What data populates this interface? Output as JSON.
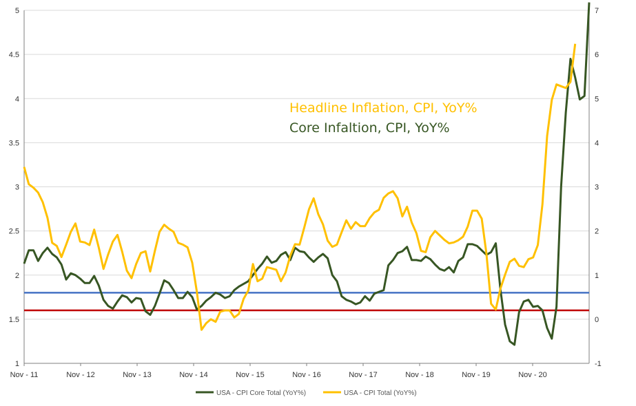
{
  "chart_data": {
    "type": "line",
    "title": "",
    "xlabel": "",
    "ylabel": "",
    "ylim": [
      1,
      5
    ],
    "y2lim": [
      -1,
      7
    ],
    "yticks": [
      "1",
      "1.5",
      "2",
      "2.5",
      "3",
      "3.5",
      "4",
      "4.5",
      "5"
    ],
    "y2ticks": [
      "-1",
      "0",
      "1",
      "2",
      "3",
      "4",
      "5",
      "6",
      "7"
    ],
    "xticks": [
      "Nov - 11",
      "Nov - 12",
      "Nov - 13",
      "Nov - 14",
      "Nov - 15",
      "Nov - 16",
      "Nov - 17",
      "Nov - 18",
      "Nov - 19",
      "Nov - 20"
    ],
    "grid": true,
    "legend_position": "bottom",
    "annotations": {
      "headline": "Headline Inflation, CPI, YoY%",
      "core": "Core Infaltion, CPI, YoY%"
    },
    "reference_lines": [
      {
        "value": 1.8,
        "axis": "left",
        "color": "#4472C4"
      },
      {
        "value": 1.6,
        "axis": "left",
        "color": "#C00000"
      }
    ],
    "series": [
      {
        "name": "USA - CPI Core Total (YoY%)",
        "axis": "left",
        "color": "#375623",
        "values": [
          2.13,
          2.28,
          2.28,
          2.16,
          2.25,
          2.31,
          2.24,
          2.2,
          2.12,
          1.95,
          2.02,
          2.0,
          1.96,
          1.91,
          1.91,
          1.99,
          1.88,
          1.72,
          1.65,
          1.62,
          1.7,
          1.77,
          1.75,
          1.69,
          1.74,
          1.73,
          1.59,
          1.55,
          1.65,
          1.79,
          1.94,
          1.91,
          1.83,
          1.74,
          1.74,
          1.81,
          1.75,
          1.61,
          1.65,
          1.71,
          1.75,
          1.8,
          1.78,
          1.74,
          1.76,
          1.83,
          1.87,
          1.9,
          1.93,
          2.0,
          2.07,
          2.13,
          2.21,
          2.14,
          2.16,
          2.23,
          2.26,
          2.17,
          2.31,
          2.27,
          2.26,
          2.2,
          2.15,
          2.2,
          2.24,
          2.19,
          2.0,
          1.93,
          1.76,
          1.72,
          1.7,
          1.67,
          1.69,
          1.76,
          1.71,
          1.79,
          1.81,
          1.83,
          2.11,
          2.17,
          2.25,
          2.27,
          2.32,
          2.17,
          2.17,
          2.16,
          2.21,
          2.18,
          2.12,
          2.07,
          2.05,
          2.09,
          2.03,
          2.16,
          2.2,
          2.35,
          2.35,
          2.33,
          2.28,
          2.23,
          2.26,
          2.36,
          1.84,
          1.44,
          1.25,
          1.21,
          1.58,
          1.7,
          1.72,
          1.64,
          1.65,
          1.6,
          1.4,
          1.28,
          1.64,
          3.0,
          3.84,
          4.45,
          4.24,
          3.99,
          4.03,
          5.09
        ]
      },
      {
        "name": "USA - CPI Total (YoY%)",
        "axis": "right",
        "color": "#FFC000",
        "values": [
          3.45,
          3.06,
          2.98,
          2.87,
          2.65,
          2.3,
          1.73,
          1.66,
          1.41,
          1.69,
          1.98,
          2.17,
          1.76,
          1.74,
          1.68,
          2.03,
          1.62,
          1.14,
          1.47,
          1.76,
          1.91,
          1.53,
          1.1,
          0.93,
          1.25,
          1.5,
          1.54,
          1.08,
          1.55,
          1.98,
          2.14,
          2.05,
          1.98,
          1.73,
          1.69,
          1.63,
          1.28,
          0.62,
          -0.24,
          -0.09,
          0.0,
          -0.06,
          0.17,
          0.2,
          0.2,
          0.04,
          0.12,
          0.46,
          0.65,
          1.25,
          0.86,
          0.92,
          1.18,
          1.15,
          1.12,
          0.86,
          1.06,
          1.44,
          1.7,
          1.69,
          2.08,
          2.49,
          2.74,
          2.38,
          2.15,
          1.78,
          1.64,
          1.69,
          1.97,
          2.24,
          2.05,
          2.2,
          2.11,
          2.11,
          2.29,
          2.42,
          2.48,
          2.75,
          2.85,
          2.9,
          2.74,
          2.33,
          2.55,
          2.19,
          1.95,
          1.55,
          1.52,
          1.86,
          2.0,
          1.9,
          1.8,
          1.72,
          1.74,
          1.79,
          1.87,
          2.1,
          2.46,
          2.46,
          2.28,
          1.49,
          0.35,
          0.22,
          0.69,
          1.01,
          1.3,
          1.37,
          1.21,
          1.18,
          1.36,
          1.4,
          1.68,
          2.6,
          4.15,
          4.97,
          5.32,
          5.28,
          5.24,
          5.38,
          6.24
        ]
      }
    ]
  }
}
